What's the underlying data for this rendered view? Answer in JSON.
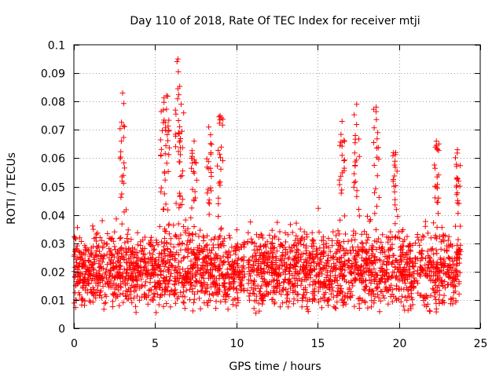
{
  "chart_data": {
    "type": "scatter",
    "title": "Day 110 of 2018, Rate Of TEC Index for receiver mtji",
    "xlabel": "GPS time / hours",
    "ylabel": "ROTI / TECUs",
    "xlim": [
      0,
      25
    ],
    "ylim": [
      0,
      0.1
    ],
    "xticks": [
      0,
      5,
      10,
      15,
      20,
      25
    ],
    "xtick_labels": [
      "0",
      "5",
      "10",
      "15",
      "20",
      "25"
    ],
    "yticks": [
      0,
      0.01,
      0.02,
      0.03,
      0.04,
      0.05,
      0.06,
      0.07,
      0.08,
      0.09,
      0.1
    ],
    "ytick_labels": [
      "0",
      "0.01",
      "0.02",
      "0.03",
      "0.04",
      "0.05",
      "0.06",
      "0.07",
      "0.08",
      "0.09",
      "0.1"
    ],
    "grid": true,
    "marker": "+",
    "marker_color": "#ff0000",
    "data_range_hours": [
      0,
      23.8
    ],
    "series": [
      {
        "name": "ROTI",
        "color": "#ff0000",
        "typical_range": [
          0.005,
          0.035
        ],
        "notable_peaks": [
          {
            "x": 3.0,
            "y": 0.083
          },
          {
            "x": 5.5,
            "y": 0.077
          },
          {
            "x": 5.7,
            "y": 0.082
          },
          {
            "x": 6.4,
            "y": 0.095
          },
          {
            "x": 6.6,
            "y": 0.079
          },
          {
            "x": 7.4,
            "y": 0.066
          },
          {
            "x": 8.3,
            "y": 0.071
          },
          {
            "x": 9.0,
            "y": 0.075
          },
          {
            "x": 16.5,
            "y": 0.073
          },
          {
            "x": 17.4,
            "y": 0.079
          },
          {
            "x": 18.6,
            "y": 0.078
          },
          {
            "x": 19.8,
            "y": 0.062
          },
          {
            "x": 22.3,
            "y": 0.066
          },
          {
            "x": 23.6,
            "y": 0.063
          }
        ]
      }
    ]
  }
}
